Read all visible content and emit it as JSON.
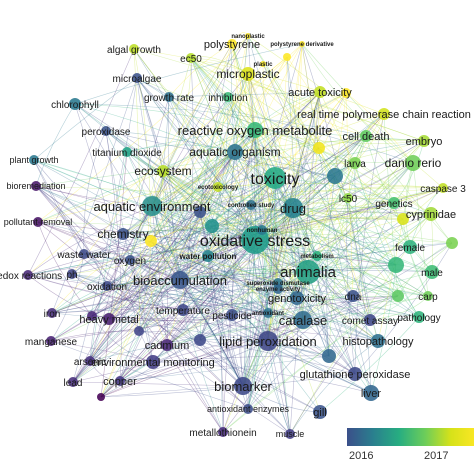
{
  "legend": {
    "tick_labels": [
      "2016",
      "2017"
    ],
    "colors": [
      "#3b4f8a",
      "#2a7f8e",
      "#27ad81",
      "#6ccd5a",
      "#d7e219",
      "#fde725"
    ]
  },
  "link_colors": [
    "#3b6aa0",
    "#46a0a8",
    "#6cc58a",
    "#c8d84a"
  ],
  "nodes": [
    {
      "label": "oxidative stress",
      "color": "#1e9c89",
      "bold": false
    },
    {
      "label": "toxicity",
      "color": "#22a884",
      "bold": false
    },
    {
      "label": "aquatic environment",
      "color": "#2a8f8c",
      "bold": false
    },
    {
      "label": "animalia",
      "color": "#25a184",
      "bold": false
    },
    {
      "label": "drug",
      "color": "#26828e",
      "bold": false
    },
    {
      "label": "bioaccumulation",
      "color": "#39568c",
      "bold": false
    },
    {
      "label": "reactive oxygen metabolite",
      "color": "#35b779",
      "bold": false
    },
    {
      "label": "aquatic organism",
      "color": "#2c738e",
      "bold": false
    },
    {
      "label": "lipid peroxidation",
      "color": "#3f4788",
      "bold": false
    },
    {
      "label": "catalase",
      "color": "#2f6b8e",
      "bold": false
    },
    {
      "label": "biomarker",
      "color": "#3e4989",
      "bold": false
    },
    {
      "label": "ecosystem",
      "color": "#b8de29",
      "bold": false
    },
    {
      "label": "chemistry",
      "color": "#3b528b",
      "bold": false
    },
    {
      "label": "microplastic",
      "color": "#dde318",
      "bold": false
    },
    {
      "label": "danio rerio",
      "color": "#6ece58",
      "bold": false
    },
    {
      "label": "cyprinidae",
      "color": "#a0da39",
      "bold": false
    },
    {
      "label": "genotoxicity",
      "color": "#31688e",
      "bold": false
    },
    {
      "label": "histopathology",
      "color": "#2d708e",
      "bold": false
    },
    {
      "label": "glutathione peroxidase",
      "color": "#3e4a89",
      "bold": false
    },
    {
      "label": "environmental monitoring",
      "color": "#433e85",
      "bold": false
    },
    {
      "label": "heavy metal",
      "color": "#481f70",
      "bold": false
    },
    {
      "label": "polystyrene",
      "color": "#fde725",
      "bold": false
    },
    {
      "label": "acute toxicity",
      "color": "#c2df23",
      "bold": false
    },
    {
      "label": "real time polymerase chain reaction",
      "color": "#d2e21b",
      "bold": false
    },
    {
      "label": "cell death",
      "color": "#5ec962",
      "bold": false
    },
    {
      "label": "embryo",
      "color": "#a5db36",
      "bold": false
    },
    {
      "label": "larva",
      "color": "#7ad151",
      "bold": false
    },
    {
      "label": "genetics",
      "color": "#44bf70",
      "bold": false
    },
    {
      "label": "lc50",
      "color": "#8fd744",
      "bold": false
    },
    {
      "label": "caspase 3",
      "color": "#c0df25",
      "bold": false
    },
    {
      "label": "female",
      "color": "#2db27d",
      "bold": false
    },
    {
      "label": "male",
      "color": "#3dbc74",
      "bold": false
    },
    {
      "label": "carp",
      "color": "#6ece58",
      "bold": false
    },
    {
      "label": "pathology",
      "color": "#2fb47c",
      "bold": false
    },
    {
      "label": "comet assay",
      "color": "#3f4889",
      "bold": false
    },
    {
      "label": "dna",
      "color": "#3b518b",
      "bold": false
    },
    {
      "label": "liver",
      "color": "#31678e",
      "bold": false
    },
    {
      "label": "gill",
      "color": "#3a548c",
      "bold": false
    },
    {
      "label": "muscle",
      "color": "#433d84",
      "bold": false
    },
    {
      "label": "metallothionein",
      "color": "#472a7a",
      "bold": false
    },
    {
      "label": "antioxidant enzymes",
      "color": "#3d4d8a",
      "bold": false
    },
    {
      "label": "cadmium",
      "color": "#482576",
      "bold": false
    },
    {
      "label": "copper",
      "color": "#443983",
      "bold": false
    },
    {
      "label": "lead",
      "color": "#472d7b",
      "bold": false
    },
    {
      "label": "arsenic",
      "color": "#46307e",
      "bold": false
    },
    {
      "label": "manganese",
      "color": "#482173",
      "bold": false
    },
    {
      "label": "iron",
      "color": "#472c7a",
      "bold": false
    },
    {
      "label": "ph",
      "color": "#404588",
      "bold": false
    },
    {
      "label": "oxidation",
      "color": "#3e4989",
      "bold": false
    },
    {
      "label": "oxygen",
      "color": "#3b528b",
      "bold": false
    },
    {
      "label": "waste water",
      "color": "#3e4a89",
      "bold": false
    },
    {
      "label": "redox reactions",
      "color": "#482878",
      "bold": false
    },
    {
      "label": "pollutant removal",
      "color": "#471365",
      "bold": false
    },
    {
      "label": "bioremediation",
      "color": "#481769",
      "bold": false
    },
    {
      "label": "plant growth",
      "color": "#2a788e",
      "bold": false
    },
    {
      "label": "titanium dioxide",
      "color": "#20a386",
      "bold": false
    },
    {
      "label": "peroxidase",
      "color": "#3a538b",
      "bold": false
    },
    {
      "label": "chlorophyll",
      "color": "#29798e",
      "bold": false
    },
    {
      "label": "microalgae",
      "color": "#3b528b",
      "bold": false
    },
    {
      "label": "algal growth",
      "color": "#bddf26",
      "bold": false
    },
    {
      "label": "ec50",
      "color": "#b5de2b",
      "bold": false
    },
    {
      "label": "growth rate",
      "color": "#2e6f8e",
      "bold": false
    },
    {
      "label": "inhibition",
      "color": "#3aba76",
      "bold": false
    },
    {
      "label": "temperature",
      "color": "#3f4889",
      "bold": false
    },
    {
      "label": "pesticide",
      "color": "#3d4e8a",
      "bold": false
    },
    {
      "label": "water pollution",
      "color": "#25838e",
      "bold": true
    },
    {
      "label": "metabolism",
      "color": "#29af7f",
      "bold": true
    },
    {
      "label": "nonhuman",
      "color": "#2a788e",
      "bold": true
    },
    {
      "label": "controlled study",
      "color": "#2d708e",
      "bold": true
    },
    {
      "label": "ecotoxicology",
      "color": "#c2df23",
      "bold": true
    },
    {
      "label": "superoxide dismutase",
      "color": "#2c728e",
      "bold": true
    },
    {
      "label": "enzyme activity",
      "color": "#31678e",
      "bold": true
    },
    {
      "label": "antioxidant",
      "color": "#2c718e",
      "bold": true
    },
    {
      "label": "nanoplastic",
      "color": "#fde725",
      "bold": true
    },
    {
      "label": "polystyrene derivative",
      "color": "#fde725",
      "bold": true
    },
    {
      "label": "plastic",
      "color": "#f6e620",
      "bold": true
    },
    {
      "label": "",
      "color": "#fde725",
      "bold": false
    },
    {
      "label": "",
      "color": "#d8e219",
      "bold": false
    },
    {
      "label": "",
      "color": "#3e4989",
      "bold": false
    },
    {
      "label": "",
      "color": "#472878",
      "bold": false
    },
    {
      "label": "",
      "color": "#2a788e",
      "bold": false
    },
    {
      "label": "",
      "color": "#5cc863",
      "bold": false
    },
    {
      "label": "",
      "color": "#fde725",
      "bold": false
    },
    {
      "label": "",
      "color": "#414487",
      "bold": false
    },
    {
      "label": "",
      "color": "#21918c",
      "bold": false
    },
    {
      "label": "",
      "color": "#440154",
      "bold": false
    },
    {
      "label": "",
      "color": "#f1e51d",
      "bold": false
    },
    {
      "label": "",
      "color": "#35b779",
      "bold": false
    },
    {
      "label": "",
      "color": "#31688e",
      "bold": false
    },
    {
      "label": "",
      "color": "#fde725",
      "bold": false
    },
    {
      "label": "",
      "color": "#3b528b",
      "bold": false
    },
    {
      "label": "",
      "color": "#7ad151",
      "bold": false
    }
  ]
}
